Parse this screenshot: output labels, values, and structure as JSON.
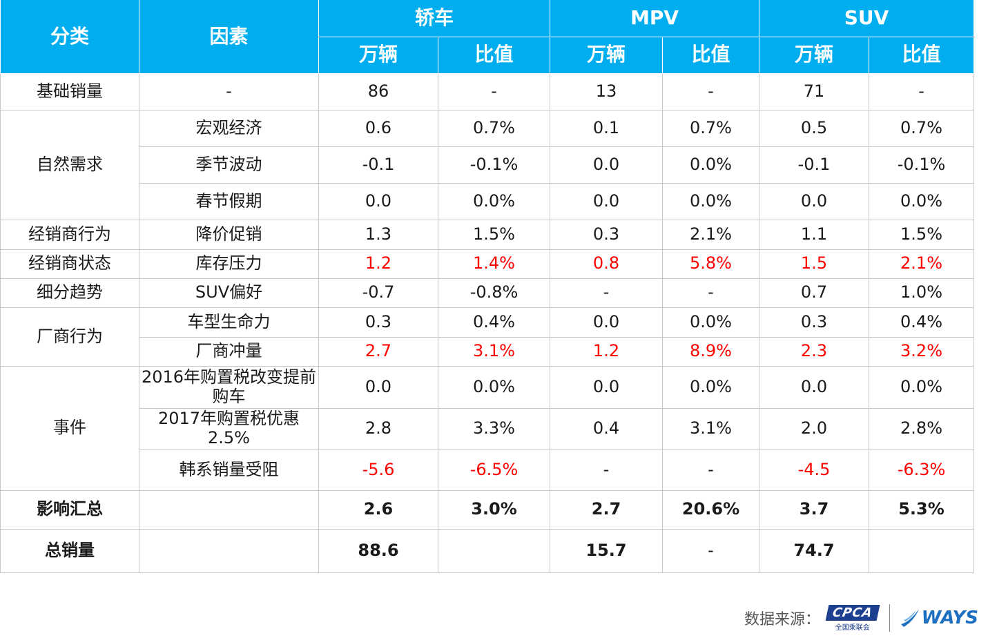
{
  "header": {
    "category": "分类",
    "factor": "因素",
    "groups": [
      "轿车",
      "MPV",
      "SUV"
    ],
    "sub": [
      "万辆",
      "比值",
      "万辆",
      "比值",
      "万辆",
      "比值"
    ]
  },
  "rows": [
    {
      "cat": "基础销量",
      "factor": "-",
      "cells": [
        "86",
        "-",
        "13",
        "-",
        "71",
        "-"
      ]
    },
    {
      "cat": "自然需求",
      "factor": "宏观经济",
      "cells": [
        "0.6",
        "0.7%",
        "0.1",
        "0.7%",
        "0.5",
        "0.7%"
      ]
    },
    {
      "factor": "季节波动",
      "cells": [
        "-0.1",
        "-0.1%",
        "0.0",
        "0.0%",
        "-0.1",
        "-0.1%"
      ]
    },
    {
      "factor": "春节假期",
      "cells": [
        "0.0",
        "0.0%",
        "0.0",
        "0.0%",
        "0.0",
        "0.0%"
      ]
    },
    {
      "cat": "经销商行为",
      "factor": "降价促销",
      "cells": [
        "1.3",
        "1.5%",
        "0.3",
        "2.1%",
        "1.1",
        "1.5%"
      ]
    },
    {
      "cat": "经销商状态",
      "factor": "库存压力",
      "cells": [
        "1.2",
        "1.4%",
        "0.8",
        "5.8%",
        "1.5",
        "2.1%"
      ]
    },
    {
      "cat": "细分趋势",
      "factor": "SUV偏好",
      "cells": [
        "-0.7",
        "-0.8%",
        "-",
        "-",
        "0.7",
        "1.0%"
      ]
    },
    {
      "cat": "厂商行为",
      "factor": "车型生命力",
      "cells": [
        "0.3",
        "0.4%",
        "0.0",
        "0.0%",
        "0.3",
        "0.4%"
      ]
    },
    {
      "factor": "厂商冲量",
      "cells": [
        "2.7",
        "3.1%",
        "1.2",
        "8.9%",
        "2.3",
        "3.2%"
      ]
    },
    {
      "cat": "事件",
      "factor": "2016年购置税改变提前购车",
      "cells": [
        "0.0",
        "0.0%",
        "0.0",
        "0.0%",
        "0.0",
        "0.0%"
      ]
    },
    {
      "factor": "2017年购置税优惠2.5%",
      "cells": [
        "2.8",
        "3.3%",
        "0.4",
        "3.1%",
        "2.0",
        "2.8%"
      ]
    },
    {
      "factor": "韩系销量受阻",
      "cells": [
        "-5.6",
        "-6.5%",
        "-",
        "-",
        "-4.5",
        "-6.3%"
      ]
    },
    {
      "cat": "影响汇总",
      "factor": "",
      "cells": [
        "2.6",
        "3.0%",
        "2.7",
        "20.6%",
        "3.7",
        "5.3%"
      ]
    },
    {
      "cat": "总销量",
      "factor": "",
      "cells": [
        "88.6",
        "",
        "15.7",
        "-",
        "74.7",
        ""
      ]
    }
  ],
  "footer": {
    "source_label": "数据来源：",
    "logo1_main": "CPCA",
    "logo1_sub": "全国乘联会",
    "logo2": "WAYS"
  },
  "colors": {
    "header_bg": "#00aeef",
    "highlight": "#ff0000",
    "logo_blue": "#1d3f8f"
  }
}
